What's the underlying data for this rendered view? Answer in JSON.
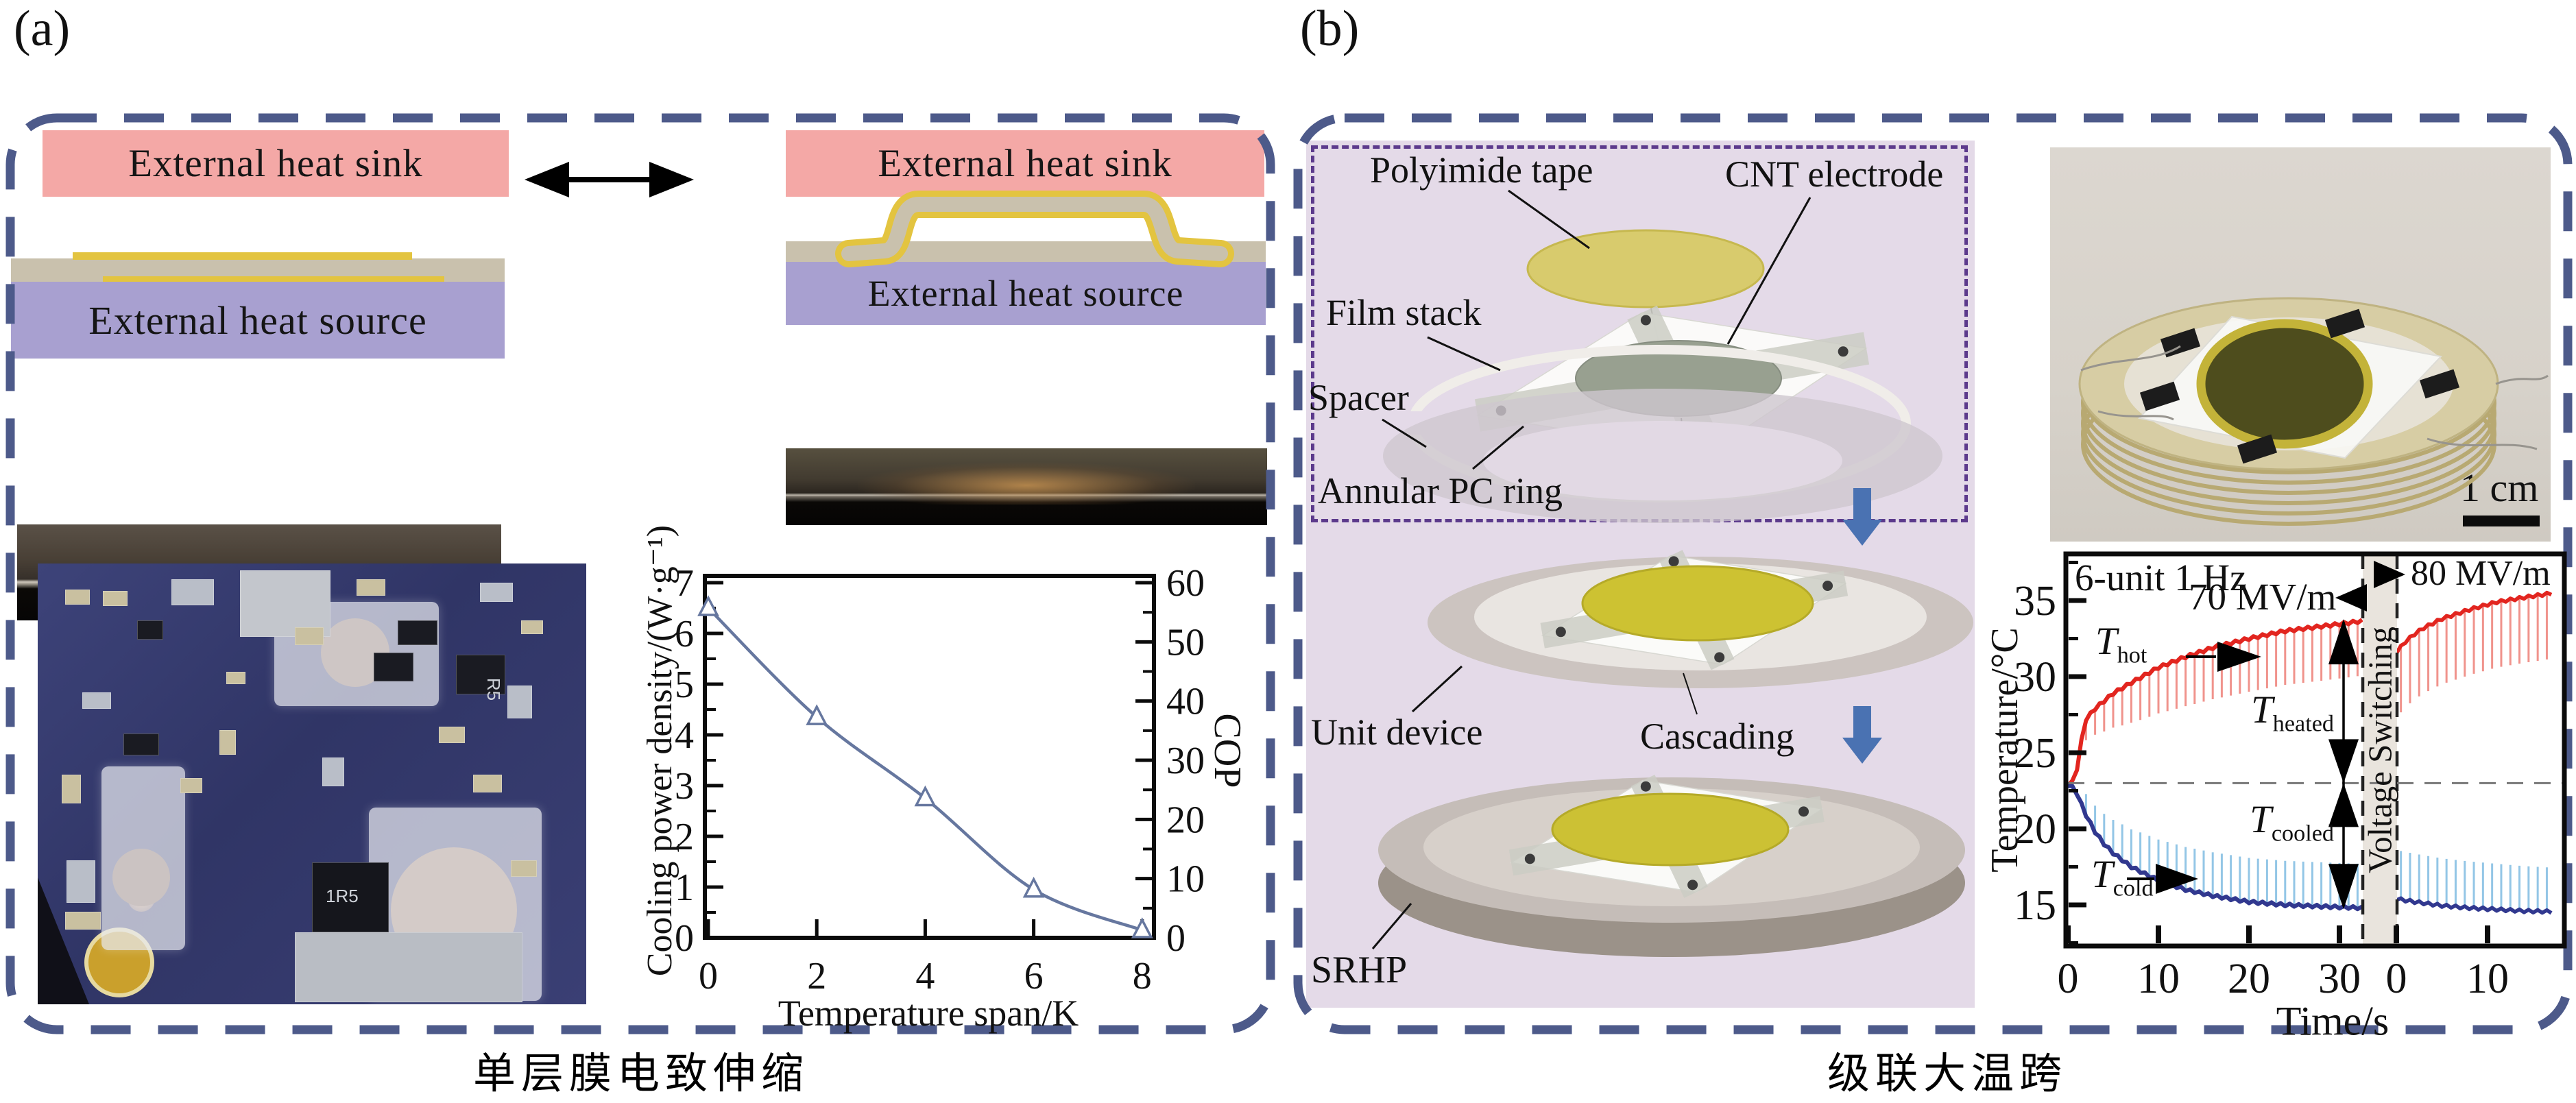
{
  "figure": {
    "panel_a": {
      "tag": "(a)",
      "caption": "单层膜电致伸缩",
      "schematic": {
        "heat_sink": "External heat sink",
        "heat_source": "External heat source"
      },
      "board_labels": {
        "inductor": "1R5",
        "resistor": "R5"
      }
    },
    "panel_b": {
      "tag": "(b)",
      "caption": "级联大温跨",
      "exploded": {
        "polyimide_tape": "Polyimide tape",
        "cnt_electrode": "CNT electrode",
        "film_stack": "Film stack",
        "spacer": "Spacer",
        "annular_pc_ring": "Annular PC ring"
      },
      "cascade": {
        "unit_device": "Unit device",
        "cascading": "Cascading",
        "srhp": "SRHP"
      },
      "photo_scale_bar": "1 cm"
    }
  },
  "chart_data": [
    {
      "id": "cooling-power-cop",
      "type": "line",
      "xlabel": "Temperature span/K",
      "ylabel": "Cooling power density/(W·g⁻¹)",
      "y2label": "COP",
      "xlim": [
        0,
        8
      ],
      "ylim": [
        0,
        7
      ],
      "y2lim": [
        0,
        60
      ],
      "xticks": [
        0,
        2,
        4,
        6,
        8
      ],
      "yticks": [
        0,
        1,
        2,
        3,
        4,
        5,
        6,
        7
      ],
      "y2ticks": [
        0,
        10,
        20,
        30,
        40,
        50,
        60
      ],
      "grid": false,
      "legend": "none",
      "series": [
        {
          "name": "cooling power density",
          "marker": "open-triangle",
          "color": "#66779f",
          "x": [
            0,
            2,
            4,
            6,
            8
          ],
          "y": [
            6.5,
            4.35,
            2.75,
            0.95,
            0.15
          ]
        }
      ]
    },
    {
      "id": "cascade-temperature",
      "type": "line",
      "xlabel": "Time/s",
      "ylabel": "Temperature/°C",
      "ylim": [
        11,
        38
      ],
      "yticks": [
        15,
        20,
        25,
        30,
        35
      ],
      "baseline_c": 23,
      "annotations": {
        "condition": "6-unit 1 Hz",
        "field_left": "70 MV/m",
        "field_right": "80 MV/m",
        "band": "Voltage Switching",
        "t_hot": [
          "T",
          "hot"
        ],
        "t_cold": [
          "T",
          "cold"
        ],
        "t_heated": [
          "T",
          "heated"
        ],
        "t_cooled": [
          "T",
          "cooled"
        ]
      },
      "oscillation_hz": 1,
      "segments": [
        {
          "xticks": [
            0,
            10,
            20,
            30
          ],
          "t_hot_envelope": [
            [
              0,
              22.9
            ],
            [
              0.8,
              23.2
            ],
            [
              1.5,
              25.8
            ],
            [
              2,
              27.2
            ],
            [
              3,
              27.9
            ],
            [
              4,
              28.4
            ],
            [
              5,
              28.9
            ],
            [
              7,
              29.6
            ],
            [
              10,
              30.6
            ],
            [
              13,
              31.3
            ],
            [
              16,
              31.9
            ],
            [
              20,
              32.5
            ],
            [
              24,
              33.0
            ],
            [
              28,
              33.3
            ],
            [
              32.5,
              33.65
            ]
          ],
          "t_cold_envelope": [
            [
              0,
              22.9
            ],
            [
              0.8,
              22.6
            ],
            [
              1.5,
              21.6
            ],
            [
              2,
              20.9
            ],
            [
              3,
              19.8
            ],
            [
              4,
              19.0
            ],
            [
              5,
              18.4
            ],
            [
              7,
              17.5
            ],
            [
              10,
              16.6
            ],
            [
              13,
              16.0
            ],
            [
              16,
              15.6
            ],
            [
              20,
              15.2
            ],
            [
              24,
              15.0
            ],
            [
              28,
              14.9
            ],
            [
              32.5,
              14.8
            ]
          ]
        },
        {
          "xticks": [
            0,
            10
          ],
          "t_hot_envelope": [
            [
              0,
              31.6
            ],
            [
              1,
              32.3
            ],
            [
              2,
              32.8
            ],
            [
              3,
              33.2
            ],
            [
              5,
              33.8
            ],
            [
              8,
              34.4
            ],
            [
              11,
              34.9
            ],
            [
              14,
              35.2
            ],
            [
              17.3,
              35.5
            ]
          ],
          "t_cold_envelope": [
            [
              0,
              15.4
            ],
            [
              2,
              15.2
            ],
            [
              5,
              14.95
            ],
            [
              8,
              14.8
            ],
            [
              11,
              14.7
            ],
            [
              14,
              14.6
            ],
            [
              17.3,
              14.55
            ]
          ]
        }
      ],
      "colors": {
        "hot": "#e2251f",
        "hot_light": "#f0938c",
        "cold": "#31388f",
        "cold_light": "#93c6e6",
        "band_fill": "#e9e4dd"
      }
    }
  ],
  "colors": {
    "panel_border": "#4d5a8a",
    "heat_sink_pink": "#f4a8a6",
    "heat_source_purple": "#a8a0d0",
    "film_gray": "#c9c1ad",
    "film_yellow": "#e3c440",
    "exploded_bg": "#e4dae8",
    "exploded_box": "#5c3a8c",
    "cascade_arrow_blue": "#4a72b2"
  }
}
